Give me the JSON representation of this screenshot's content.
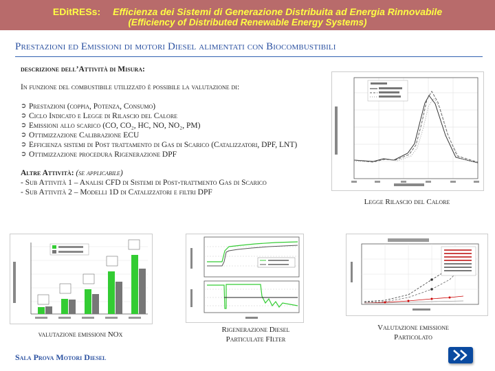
{
  "banner": {
    "tag": "EDitRESs:",
    "line1": "Efficienza dei Sistemi di Generazione Distribuita ad Energia Rinnovabile",
    "line2": "(Efficiency of Distributed Renewable Energy Systems)"
  },
  "title": "Prestazioni ed Emissioni di motori Diesel alimentati con Biocombustibili",
  "section_heading": "descrizione dell’Attività di Misura:",
  "intro": "In funzione del combustibile utilizzato è possibile la valutazione di:",
  "bullet_glyph": "➲",
  "items": [
    "Prestazioni (coppia, Potenza, Consumo)",
    "Ciclo Indicato e Legge di Rilascio del Calore",
    "Emissioni allo scarico (CO, CO₂, HC, NO, NO₂, PM)",
    "Ottimizzazione Calibrazione ECU",
    "Efficienza sistemi di Post trattamento di Gas di Scarico (Catalizzatori, DPF, LNT)",
    "Ottimizzazione procedura Rigenerazione DPF"
  ],
  "other_heading": "Altre Attività:",
  "other_note": "(se applicabile)",
  "subs": [
    "- Sub Attività 1 – Analisi CFD di Sistemi di Post-trattmento Gas di Scarico",
    "- Sub Attività 2 – Modelli 1D di Catalizzatori e filtri DPF"
  ],
  "captions": {
    "heat": "Legge Rilascio del Calore",
    "nox": "valutazione emissioni NOx",
    "dpf": "Rigenerazione Diesel Particulate FIlter",
    "pm": "Valutazione emissione Particolato"
  },
  "footer": "Sala Prova Motori Diesel",
  "colors": {
    "banner": "#b86b6b",
    "banner_text": "#ffff44",
    "title": "#2a50a0",
    "button": "#0a4aa0"
  },
  "icons": {
    "next": "chevron-right-icon"
  }
}
